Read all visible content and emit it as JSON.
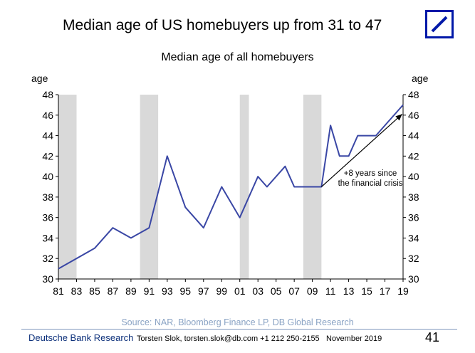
{
  "headline": "Median age of US homebuyers up from 31 to 47",
  "logo": {
    "icon": "deutsche-bank-logo-icon",
    "color": "#0018A8"
  },
  "chart_data": {
    "type": "line",
    "title": "Median age of all homebuyers",
    "ylabel_left": "age",
    "ylabel_right": "age",
    "ylim": [
      30,
      48
    ],
    "yticks": [
      30,
      32,
      34,
      36,
      38,
      40,
      42,
      44,
      46,
      48
    ],
    "xlim": [
      1981,
      2019
    ],
    "xtick_years": [
      1981,
      1983,
      1985,
      1987,
      1989,
      1991,
      1993,
      1995,
      1997,
      1999,
      2001,
      2003,
      2005,
      2007,
      2009,
      2011,
      2013,
      2015,
      2017,
      2019
    ],
    "xtick_labels": [
      "81",
      "83",
      "85",
      "87",
      "89",
      "91",
      "93",
      "95",
      "97",
      "99",
      "01",
      "03",
      "05",
      "07",
      "09",
      "11",
      "13",
      "15",
      "17",
      "19"
    ],
    "series": [
      {
        "color": "#3a47a5",
        "x": [
          1981,
          1985,
          1987,
          1989,
          1991,
          1993,
          1995,
          1997,
          1999,
          2001,
          2003,
          2004,
          2006,
          2007,
          2009,
          2010,
          2011,
          2012,
          2013,
          2014,
          2016,
          2019
        ],
        "y": [
          31,
          33,
          35,
          34,
          35,
          42,
          37,
          35,
          39,
          36,
          40,
          39,
          41,
          39,
          39,
          39,
          45,
          42,
          42,
          44,
          44,
          47
        ]
      }
    ],
    "recession_shading": [
      [
        1981,
        1983
      ],
      [
        1990,
        1992
      ],
      [
        2001,
        2002
      ],
      [
        2008,
        2010
      ]
    ],
    "shading_color": "#d9d9d9",
    "annotation": {
      "lines": [
        "+8 years since",
        "the financial crisis"
      ],
      "arrow_from": [
        2010,
        39
      ],
      "arrow_to": [
        2018.9,
        46.1
      ]
    },
    "grid": false,
    "legend": "none"
  },
  "source": "Source: NAR, Bloomberg Finance LP, DB Global Research",
  "footer": {
    "brand": "Deutsche Bank Research",
    "contact": "Torsten Slok, torsten.slok@db.com  +1 212 250-2155",
    "date": "November 2019",
    "page": "41"
  }
}
